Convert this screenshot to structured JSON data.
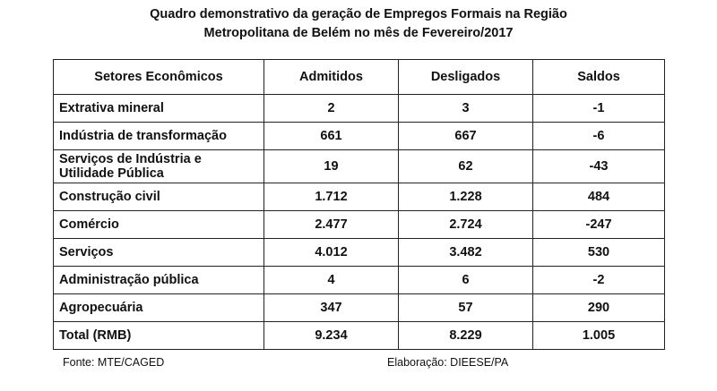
{
  "title": {
    "line1": "Quadro demonstrativo da geração de Empregos Formais na Região",
    "line2": "Metropolitana de Belém no mês de Fevereiro/2017"
  },
  "table": {
    "headers": [
      "Setores Econômicos",
      "Admitidos",
      "Desligados",
      "Saldos"
    ],
    "rows": [
      {
        "sector": "Extrativa mineral",
        "admitidos": "2",
        "desligados": "3",
        "saldos": "-1"
      },
      {
        "sector": "Indústria de transformação",
        "admitidos": "661",
        "desligados": "667",
        "saldos": "-6"
      },
      {
        "sector": "Serviços de Indústria e Utilidade Pública",
        "admitidos": "19",
        "desligados": "62",
        "saldos": "-43"
      },
      {
        "sector": "Construção civil",
        "admitidos": "1.712",
        "desligados": "1.228",
        "saldos": "484"
      },
      {
        "sector": "Comércio",
        "admitidos": "2.477",
        "desligados": "2.724",
        "saldos": "-247"
      },
      {
        "sector": "Serviços",
        "admitidos": "4.012",
        "desligados": "3.482",
        "saldos": "530"
      },
      {
        "sector": "Administração pública",
        "admitidos": "4",
        "desligados": "6",
        "saldos": "-2"
      },
      {
        "sector": "Agropecuária",
        "admitidos": "347",
        "desligados": "57",
        "saldos": "290"
      },
      {
        "sector": "Total (RMB)",
        "admitidos": "9.234",
        "desligados": "8.229",
        "saldos": "1.005"
      }
    ]
  },
  "footer": {
    "source": "Fonte: MTE/CAGED",
    "elaboration": "Elaboração: DIEESE/PA"
  }
}
